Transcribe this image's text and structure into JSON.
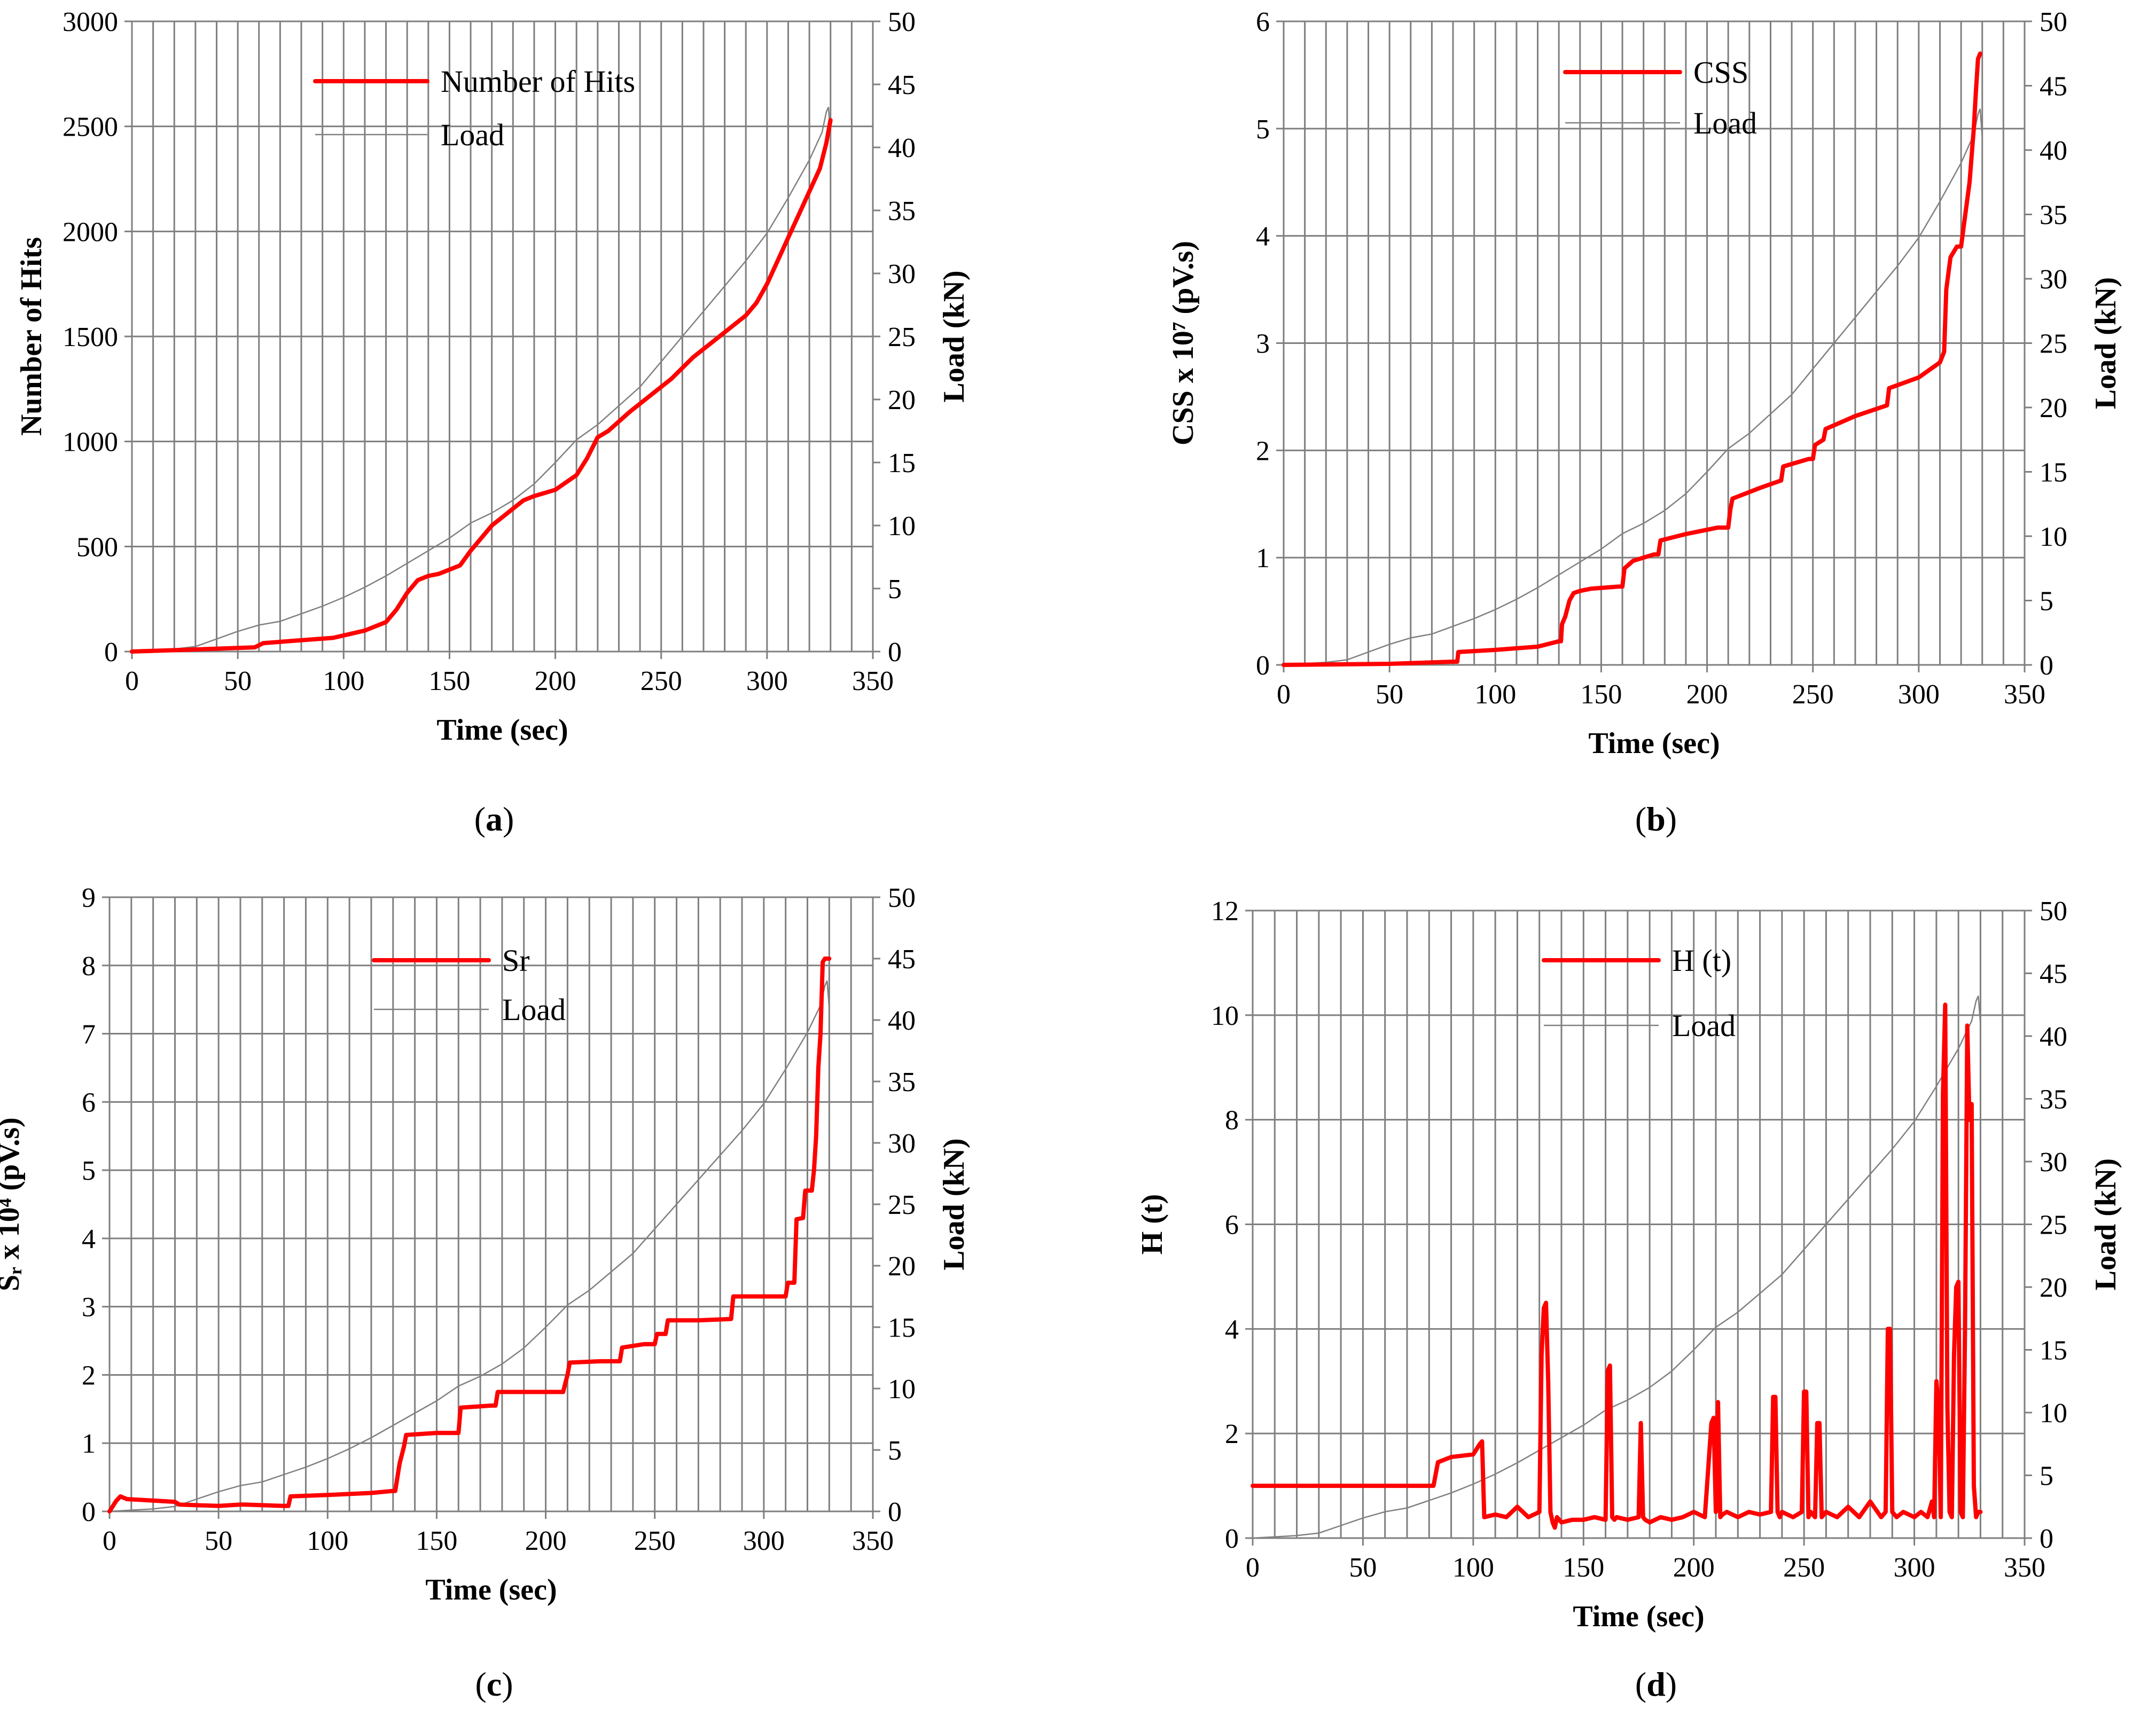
{
  "colors": {
    "primary": "#ff0000",
    "load": "#808080",
    "grid": "#7f7f7f"
  },
  "chart_data": [
    {
      "panel": "(a)",
      "panel_letter": "a",
      "type": "line",
      "xlabel": "Time (sec)",
      "ylabel": "Number of Hits",
      "y2label": "Load (kN)",
      "xlim": [
        0,
        350
      ],
      "ylim": [
        0,
        3000
      ],
      "y2lim": [
        0,
        50
      ],
      "x_ticks": [
        0,
        50,
        100,
        150,
        200,
        250,
        300,
        350
      ],
      "y_ticks": [
        0,
        500,
        1000,
        1500,
        2000,
        2500,
        3000
      ],
      "y2_ticks": [
        0,
        5,
        10,
        15,
        20,
        25,
        30,
        35,
        40,
        45,
        50
      ],
      "series": [
        {
          "name": "Number of Hits",
          "axis": "left",
          "x": [
            0,
            30,
            58,
            62,
            75,
            95,
            110,
            120,
            125,
            130,
            135,
            140,
            145,
            150,
            155,
            160,
            165,
            170,
            175,
            180,
            185,
            190,
            200,
            210,
            215,
            220,
            225,
            235,
            245,
            255,
            265,
            275,
            285,
            290,
            295,
            300,
            305,
            310,
            315,
            320,
            325,
            328,
            330
          ],
          "y": [
            0,
            10,
            20,
            40,
            50,
            65,
            100,
            140,
            200,
            280,
            340,
            360,
            370,
            390,
            410,
            480,
            540,
            600,
            640,
            680,
            720,
            740,
            770,
            840,
            920,
            1020,
            1050,
            1140,
            1220,
            1300,
            1400,
            1480,
            1560,
            1600,
            1660,
            1750,
            1860,
            1970,
            2080,
            2190,
            2300,
            2420,
            2530
          ]
        },
        {
          "name": "Load",
          "axis": "right",
          "x": [
            0,
            20,
            30,
            40,
            50,
            60,
            70,
            80,
            90,
            100,
            110,
            120,
            130,
            140,
            150,
            160,
            170,
            180,
            190,
            200,
            210,
            220,
            230,
            240,
            250,
            260,
            270,
            280,
            290,
            300,
            310,
            320,
            326,
            328,
            329,
            330
          ],
          "y": [
            0,
            0.2,
            0.4,
            1,
            1.6,
            2.1,
            2.4,
            3.0,
            3.6,
            4.3,
            5.1,
            6.0,
            7.0,
            8.0,
            9.0,
            10.2,
            11.0,
            12.0,
            13.3,
            15.0,
            16.8,
            18.0,
            19.5,
            21.0,
            23.0,
            25.0,
            27.0,
            29.0,
            31.0,
            33.2,
            36.0,
            39.0,
            41.2,
            42.8,
            43.2,
            41.0
          ]
        }
      ]
    },
    {
      "panel": "(b)",
      "panel_letter": "b",
      "type": "line",
      "xlabel": "Time (sec)",
      "ylabel": "CSS x 10⁷ (pV.s)",
      "y2label": "Load (kN)",
      "xlim": [
        0,
        350
      ],
      "ylim": [
        0,
        6
      ],
      "y2lim": [
        0,
        50
      ],
      "x_ticks": [
        0,
        50,
        100,
        150,
        200,
        250,
        300,
        350
      ],
      "y_ticks": [
        0,
        1,
        2,
        3,
        4,
        5,
        6
      ],
      "y2_ticks": [
        0,
        5,
        10,
        15,
        20,
        25,
        30,
        35,
        40,
        45,
        50
      ],
      "series": [
        {
          "name": "CSS",
          "axis": "left",
          "x": [
            0,
            50,
            80,
            82,
            82.5,
            100,
            120,
            130,
            131,
            131.5,
            133,
            135,
            137,
            140,
            145,
            158,
            160,
            161,
            165,
            175,
            177,
            178,
            190,
            205,
            210,
            211,
            212,
            225,
            235,
            236,
            248,
            250,
            251,
            255,
            256,
            270,
            285,
            286,
            300,
            310,
            312,
            313,
            315,
            318,
            320,
            322,
            324,
            326,
            327,
            328,
            329
          ],
          "y": [
            0,
            0.01,
            0.03,
            0.03,
            0.12,
            0.14,
            0.17,
            0.22,
            0.22,
            0.38,
            0.45,
            0.6,
            0.67,
            0.69,
            0.71,
            0.73,
            0.73,
            0.9,
            0.97,
            1.03,
            1.03,
            1.16,
            1.22,
            1.28,
            1.28,
            1.45,
            1.55,
            1.65,
            1.72,
            1.85,
            1.92,
            1.92,
            2.05,
            2.1,
            2.2,
            2.32,
            2.42,
            2.58,
            2.68,
            2.82,
            2.92,
            3.5,
            3.8,
            3.9,
            3.9,
            4.2,
            4.5,
            5.0,
            5.35,
            5.65,
            5.7
          ]
        },
        {
          "name": "Load",
          "axis": "right",
          "x": [
            0,
            20,
            30,
            40,
            50,
            60,
            70,
            80,
            90,
            100,
            110,
            120,
            130,
            140,
            150,
            160,
            170,
            180,
            190,
            200,
            210,
            220,
            230,
            240,
            250,
            260,
            270,
            280,
            290,
            300,
            310,
            320,
            326,
            328,
            329,
            330
          ],
          "y": [
            0,
            0.2,
            0.4,
            1,
            1.6,
            2.1,
            2.4,
            3.0,
            3.6,
            4.3,
            5.1,
            6.0,
            7.0,
            8.0,
            9.0,
            10.2,
            11.0,
            12.0,
            13.3,
            15.0,
            16.8,
            18.0,
            19.5,
            21.0,
            23.0,
            25.0,
            27.0,
            29.0,
            31.0,
            33.2,
            36.0,
            39.0,
            41.2,
            42.8,
            43.2,
            41.0
          ]
        }
      ]
    },
    {
      "panel": "(c)",
      "panel_letter": "c",
      "type": "line",
      "xlabel": "Time (sec)",
      "ylabel": "Sᵣ x 10⁴ (pV.s)",
      "y2label": "Load (kN)",
      "xlim": [
        0,
        350
      ],
      "ylim": [
        0,
        9
      ],
      "y2lim": [
        0,
        50
      ],
      "x_ticks": [
        0,
        50,
        100,
        150,
        200,
        250,
        300,
        350
      ],
      "y_ticks": [
        0,
        1,
        2,
        3,
        4,
        5,
        6,
        7,
        8,
        9
      ],
      "y2_ticks": [
        0,
        5,
        10,
        15,
        20,
        25,
        30,
        35,
        40,
        45,
        50
      ],
      "series": [
        {
          "name": "Sr",
          "axis": "left",
          "x": [
            0,
            3,
            5,
            8,
            30,
            32,
            50,
            60,
            62,
            80,
            82,
            83,
            100,
            120,
            130,
            131,
            133,
            135,
            136,
            150,
            158,
            160,
            161,
            175,
            177,
            178,
            205,
            208,
            209,
            210,
            211,
            225,
            234,
            235,
            245,
            250,
            251,
            255,
            256,
            270,
            285,
            286,
            300,
            310,
            311,
            314,
            315,
            318,
            319,
            322,
            323,
            324,
            325,
            326,
            327,
            328,
            329,
            330
          ],
          "y": [
            0,
            0.15,
            0.22,
            0.18,
            0.14,
            0.1,
            0.08,
            0.1,
            0.1,
            0.08,
            0.08,
            0.22,
            0.24,
            0.27,
            0.3,
            0.3,
            0.7,
            0.95,
            1.12,
            1.15,
            1.15,
            1.15,
            1.52,
            1.55,
            1.55,
            1.75,
            1.75,
            1.75,
            1.88,
            2.0,
            2.18,
            2.2,
            2.2,
            2.4,
            2.45,
            2.45,
            2.6,
            2.6,
            2.8,
            2.8,
            2.82,
            3.15,
            3.15,
            3.15,
            3.35,
            3.35,
            4.28,
            4.3,
            4.7,
            4.7,
            5.0,
            5.5,
            6.5,
            7.0,
            8.05,
            8.1,
            8.1,
            8.1
          ]
        },
        {
          "name": "Load",
          "axis": "right",
          "x": [
            0,
            20,
            30,
            40,
            50,
            60,
            70,
            80,
            90,
            100,
            110,
            120,
            130,
            140,
            150,
            160,
            170,
            180,
            190,
            200,
            210,
            220,
            230,
            240,
            250,
            260,
            270,
            280,
            290,
            300,
            310,
            320,
            326,
            328,
            329,
            330
          ],
          "y": [
            0,
            0.2,
            0.4,
            1,
            1.6,
            2.1,
            2.4,
            3.0,
            3.6,
            4.3,
            5.1,
            6.0,
            7.0,
            8.0,
            9.0,
            10.2,
            11.0,
            12.0,
            13.3,
            15.0,
            16.8,
            18.0,
            19.5,
            21.0,
            23.0,
            25.0,
            27.0,
            29.0,
            31.0,
            33.2,
            36.0,
            39.0,
            41.2,
            42.8,
            43.2,
            41.0
          ]
        }
      ]
    },
    {
      "panel": "(d)",
      "panel_letter": "d",
      "type": "line",
      "xlabel": "Time (sec)",
      "ylabel": "H (t)",
      "y2label": "Load (kN)",
      "xlim": [
        0,
        350
      ],
      "ylim": [
        0,
        12
      ],
      "y2lim": [
        0,
        50
      ],
      "x_ticks": [
        0,
        50,
        100,
        150,
        200,
        250,
        300,
        350
      ],
      "y_ticks": [
        0,
        2,
        4,
        6,
        8,
        10,
        12
      ],
      "y2_ticks": [
        0,
        5,
        10,
        15,
        20,
        25,
        30,
        35,
        40,
        45,
        50
      ],
      "series": [
        {
          "name": "H (t)",
          "axis": "left",
          "x": [
            0,
            82,
            84,
            90,
            100,
            103,
            104,
            105,
            110,
            115,
            120,
            125,
            130,
            131,
            132,
            133,
            134,
            135,
            136,
            137,
            138,
            140,
            145,
            150,
            155,
            160,
            161,
            162,
            163,
            164,
            165,
            170,
            175,
            176,
            177,
            178,
            180,
            185,
            190,
            195,
            200,
            205,
            208,
            209,
            210,
            211,
            212,
            213,
            215,
            220,
            225,
            230,
            235,
            236,
            237,
            238,
            239,
            240,
            245,
            249,
            250,
            251,
            252,
            253,
            255,
            256,
            257,
            258,
            260,
            265,
            270,
            275,
            280,
            285,
            287,
            288,
            289,
            290,
            292,
            295,
            300,
            303,
            306,
            308,
            309,
            310,
            311,
            312,
            313,
            314,
            315,
            316,
            317,
            318,
            319,
            320,
            321,
            322,
            323,
            324,
            325,
            326,
            327,
            328,
            329,
            330
          ],
          "y": [
            1.0,
            1.0,
            1.45,
            1.55,
            1.6,
            1.8,
            1.85,
            0.4,
            0.45,
            0.4,
            0.6,
            0.4,
            0.5,
            3.5,
            4.4,
            4.5,
            3.0,
            0.5,
            0.3,
            0.2,
            0.4,
            0.3,
            0.35,
            0.35,
            0.4,
            0.35,
            3.2,
            3.3,
            0.4,
            0.35,
            0.4,
            0.35,
            0.4,
            2.2,
            0.4,
            0.35,
            0.3,
            0.4,
            0.35,
            0.4,
            0.5,
            0.4,
            2.2,
            2.3,
            0.5,
            2.6,
            0.4,
            0.45,
            0.5,
            0.4,
            0.5,
            0.45,
            0.5,
            2.7,
            2.7,
            0.5,
            0.4,
            0.5,
            0.4,
            0.5,
            2.8,
            2.8,
            0.4,
            0.5,
            0.4,
            2.2,
            2.2,
            0.4,
            0.5,
            0.4,
            0.6,
            0.4,
            0.7,
            0.4,
            0.5,
            4.0,
            4.0,
            0.5,
            0.4,
            0.5,
            0.4,
            0.5,
            0.4,
            0.7,
            0.4,
            3.0,
            2.5,
            0.4,
            8.5,
            10.2,
            2.5,
            0.5,
            0.4,
            3.5,
            4.8,
            4.9,
            0.5,
            0.4,
            4.0,
            9.8,
            8.0,
            8.3,
            1.0,
            0.4,
            0.5,
            0.5
          ]
        },
        {
          "name": "Load",
          "axis": "right",
          "x": [
            0,
            20,
            30,
            40,
            50,
            60,
            70,
            80,
            90,
            100,
            110,
            120,
            130,
            140,
            150,
            160,
            170,
            180,
            190,
            200,
            210,
            220,
            230,
            240,
            250,
            260,
            270,
            280,
            290,
            300,
            310,
            320,
            326,
            328,
            329,
            330
          ],
          "y": [
            0,
            0.2,
            0.4,
            1,
            1.6,
            2.1,
            2.4,
            3.0,
            3.6,
            4.3,
            5.1,
            6.0,
            7.0,
            8.0,
            9.0,
            10.2,
            11.0,
            12.0,
            13.3,
            15.0,
            16.8,
            18.0,
            19.5,
            21.0,
            23.0,
            25.0,
            27.0,
            29.0,
            31.0,
            33.2,
            36.0,
            39.0,
            41.2,
            42.8,
            43.2,
            41.0
          ]
        }
      ]
    }
  ]
}
